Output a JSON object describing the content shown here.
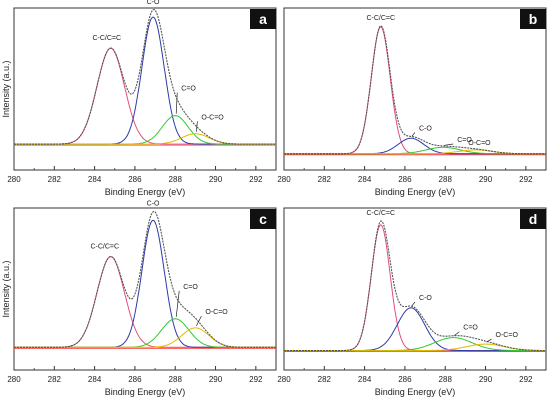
{
  "figure": {
    "panels": [
      {
        "letter": "a",
        "ylabel": "Intensity (a.u.)",
        "xlabel": "Binding Energy (eV)"
      },
      {
        "letter": "b",
        "ylabel": "",
        "xlabel": "Binding Energy (eV)"
      },
      {
        "letter": "c",
        "ylabel": "Intensity (a.u.)",
        "xlabel": "Binding Energy (eV)"
      },
      {
        "letter": "d",
        "ylabel": "",
        "xlabel": "Binding Energy (eV)"
      }
    ]
  },
  "chart_data": [
    {
      "type": "line",
      "panel": "a",
      "xlabel": "Binding Energy (eV)",
      "ylabel": "Intensity (a.u.)",
      "xlim": [
        280,
        293
      ],
      "xticks": [
        280,
        282,
        284,
        286,
        288,
        290,
        292
      ],
      "grid": false,
      "colors": {
        "C-C/C=C": "#e0507a",
        "C-O": "#2e3aa8",
        "C=O": "#32c832",
        "O-C=O": "#e6b800",
        "envelope": "#555555",
        "background": "#ff3333"
      },
      "series": [
        {
          "name": "C-C/C=C",
          "center": 284.8,
          "height": 0.74,
          "fwhm": 1.6
        },
        {
          "name": "C-O",
          "center": 286.9,
          "height": 0.98,
          "fwhm": 1.3
        },
        {
          "name": "C=O",
          "center": 288.0,
          "height": 0.22,
          "fwhm": 1.5
        },
        {
          "name": "O-C=O",
          "center": 289.0,
          "height": 0.08,
          "fwhm": 1.6
        }
      ],
      "annotations": [
        "C-C/C=C",
        "C-O",
        "C=O",
        "O-C=O"
      ]
    },
    {
      "type": "line",
      "panel": "b",
      "xlabel": "Binding Energy (eV)",
      "ylabel": "",
      "xlim": [
        280,
        293
      ],
      "xticks": [
        280,
        282,
        284,
        286,
        288,
        290,
        292
      ],
      "grid": false,
      "colors": {
        "C-C/C=C": "#e0507a",
        "C-O": "#2e3aa8",
        "C=O": "#32c832",
        "O-C=O": "#e6b800",
        "envelope": "#555555",
        "background": "#ff3333"
      },
      "series": [
        {
          "name": "C-C/C=C",
          "center": 284.8,
          "height": 0.98,
          "fwhm": 1.1
        },
        {
          "name": "C-O",
          "center": 286.3,
          "height": 0.12,
          "fwhm": 1.5
        },
        {
          "name": "C=O",
          "center": 287.9,
          "height": 0.05,
          "fwhm": 2.0
        },
        {
          "name": "O-C=O",
          "center": 289.5,
          "height": 0.03,
          "fwhm": 2.0
        }
      ],
      "annotations": [
        "C-C/C=C",
        "C-O",
        "C=O",
        "O-C=O"
      ]
    },
    {
      "type": "line",
      "panel": "c",
      "xlabel": "Binding Energy (eV)",
      "ylabel": "Intensity (a.u.)",
      "xlim": [
        280,
        293
      ],
      "xticks": [
        280,
        282,
        284,
        286,
        288,
        290,
        292
      ],
      "grid": false,
      "colors": {
        "C-C/C=C": "#e0507a",
        "C-O": "#2e3aa8",
        "C=O": "#32c832",
        "O-C=O": "#e6b800",
        "envelope": "#555555",
        "background": "#ff3333"
      },
      "series": [
        {
          "name": "C-C/C=C",
          "center": 284.8,
          "height": 0.7,
          "fwhm": 1.6
        },
        {
          "name": "C-O",
          "center": 286.9,
          "height": 0.98,
          "fwhm": 1.3
        },
        {
          "name": "C=O",
          "center": 288.0,
          "height": 0.22,
          "fwhm": 1.6
        },
        {
          "name": "O-C=O",
          "center": 289.0,
          "height": 0.15,
          "fwhm": 1.6
        }
      ],
      "annotations": [
        "C-C/C=C",
        "C-O",
        "C=O",
        "O-C=O"
      ]
    },
    {
      "type": "line",
      "panel": "d",
      "xlabel": "Binding Energy (eV)",
      "ylabel": "",
      "xlim": [
        280,
        293
      ],
      "xticks": [
        280,
        282,
        284,
        286,
        288,
        290,
        292
      ],
      "grid": false,
      "colors": {
        "C-C/C=C": "#e0507a",
        "C-O": "#2e3aa8",
        "C=O": "#32c832",
        "O-C=O": "#e6b800",
        "envelope": "#555555",
        "background": "#ff3333"
      },
      "series": [
        {
          "name": "C-C/C=C",
          "center": 284.8,
          "height": 0.97,
          "fwhm": 1.1
        },
        {
          "name": "C-O",
          "center": 286.3,
          "height": 0.33,
          "fwhm": 1.6
        },
        {
          "name": "C=O",
          "center": 288.4,
          "height": 0.1,
          "fwhm": 2.2
        },
        {
          "name": "O-C=O",
          "center": 290.0,
          "height": 0.05,
          "fwhm": 2.2
        }
      ],
      "annotations": [
        "C-C/C=C",
        "C-O",
        "C=O",
        "O-C=O"
      ]
    }
  ]
}
